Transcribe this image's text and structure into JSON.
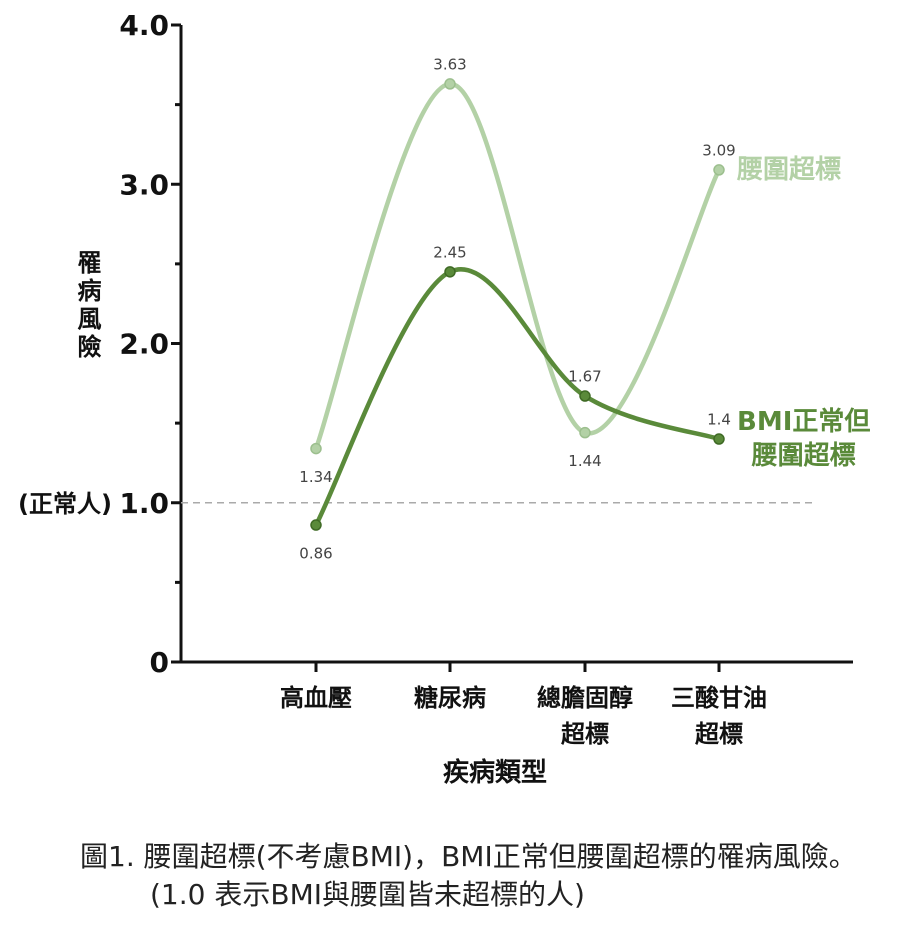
{
  "chart_data": {
    "type": "line",
    "ylabel": "罹病風險",
    "xlabel": "疾病類型",
    "categories": [
      "高血壓",
      "糖尿病",
      "總膽固醇\n超標",
      "三酸甘油\n超標"
    ],
    "series": [
      {
        "name": "腰圍超標",
        "color": "#b3d1a6",
        "values": [
          1.34,
          3.63,
          1.44,
          3.09
        ]
      },
      {
        "name": "BMI正常但\n腰圍超標",
        "color": "#5a8a3a",
        "values": [
          0.86,
          2.45,
          1.67,
          1.4
        ]
      }
    ],
    "ylim": [
      0,
      4
    ],
    "yticks": [
      0,
      {
        "value": 1,
        "label": "1.0"
      },
      {
        "value": 2,
        "label": "2.0"
      },
      {
        "value": 3,
        "label": "3.0"
      },
      {
        "value": 4,
        "label": "4.0"
      }
    ],
    "yminorticks": [
      0.5,
      1.5,
      2.5,
      3.5
    ],
    "reference_line": {
      "value": 1,
      "label": "(正常人)"
    },
    "legend": "line-end",
    "smooth": true,
    "caption": "圖1. 腰圍超標(不考慮BMI)，BMI正常但腰圍超標的罹病風險。(1.0 表示BMI與腰圍皆未超標的人)"
  }
}
